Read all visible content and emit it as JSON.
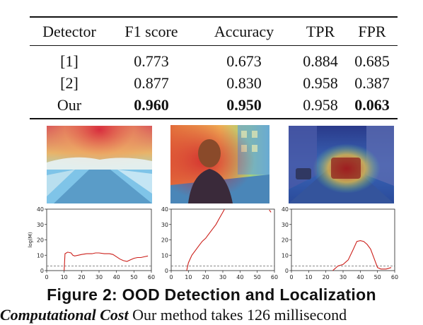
{
  "table": {
    "header": [
      "Detector",
      "F1 score",
      "Accuracy",
      "TPR",
      "FPR"
    ],
    "rows": [
      {
        "cells": [
          "[1]",
          "0.773",
          "0.673",
          "0.884",
          "0.685"
        ],
        "bold": [
          false,
          false,
          false,
          false,
          false
        ]
      },
      {
        "cells": [
          "[2]",
          "0.877",
          "0.830",
          "0.958",
          "0.387"
        ],
        "bold": [
          false,
          false,
          false,
          false,
          false
        ]
      },
      {
        "cells": [
          "Our",
          "0.960",
          "0.950",
          "0.958",
          "0.063"
        ],
        "bold": [
          false,
          true,
          true,
          false,
          true
        ]
      }
    ]
  },
  "figure": {
    "caption": "Figure 2: OOD Detection and Localization"
  },
  "body_text": {
    "lead": "Computational Cost",
    "rest": " Our method takes 126 millisecond"
  },
  "chart_data": [
    {
      "type": "line",
      "ylabel": "log(M)",
      "xlim": [
        0,
        60
      ],
      "ylim": [
        0,
        40
      ],
      "xticks": [
        0,
        10,
        20,
        30,
        40,
        50,
        60
      ],
      "yticks": [
        0,
        10,
        20,
        30,
        40
      ],
      "threshold": 3,
      "series": [
        {
          "color": "#cc1f1a",
          "x": [
            10,
            10.5,
            12,
            14,
            15,
            16,
            18,
            20,
            23,
            26,
            28,
            30,
            33,
            36,
            38,
            40,
            42,
            44,
            46,
            48,
            50,
            52,
            54,
            56,
            58
          ],
          "y": [
            0,
            11,
            12,
            11.5,
            10,
            9.5,
            10,
            10.5,
            11,
            11,
            11.5,
            11.5,
            11,
            11,
            10.5,
            9,
            7.5,
            6.5,
            6,
            7,
            8,
            8.5,
            8.5,
            9,
            9.5
          ]
        }
      ]
    },
    {
      "type": "line",
      "ylabel": "",
      "xlim": [
        0,
        60
      ],
      "ylim": [
        0,
        40
      ],
      "xticks": [
        0,
        10,
        20,
        30,
        40,
        50,
        60
      ],
      "yticks": [
        0,
        10,
        20,
        30,
        40
      ],
      "threshold": 3,
      "series": [
        {
          "color": "#cc1f1a",
          "x": [
            9,
            10,
            12,
            14,
            16,
            18,
            20,
            22,
            24,
            26,
            28,
            30,
            31
          ],
          "y": [
            0,
            5,
            10,
            13,
            16,
            19,
            21,
            24,
            27,
            30,
            34,
            38,
            40
          ]
        },
        {
          "color": "#cc1f1a",
          "x": [
            57,
            58
          ],
          "y": [
            39.5,
            38
          ]
        }
      ]
    },
    {
      "type": "line",
      "ylabel": "",
      "xlim": [
        0,
        60
      ],
      "ylim": [
        0,
        40
      ],
      "xticks": [
        0,
        10,
        20,
        30,
        40,
        50,
        60
      ],
      "yticks": [
        0,
        10,
        20,
        30,
        40
      ],
      "threshold": 3,
      "series": [
        {
          "color": "#cc1f1a",
          "x": [
            24,
            27,
            30,
            33,
            36,
            38,
            40,
            42,
            44,
            46,
            48,
            50,
            52,
            55,
            58
          ],
          "y": [
            0,
            3,
            4,
            7,
            14,
            19,
            19.5,
            19,
            17,
            14,
            8,
            2,
            1,
            1,
            2
          ]
        }
      ]
    }
  ]
}
